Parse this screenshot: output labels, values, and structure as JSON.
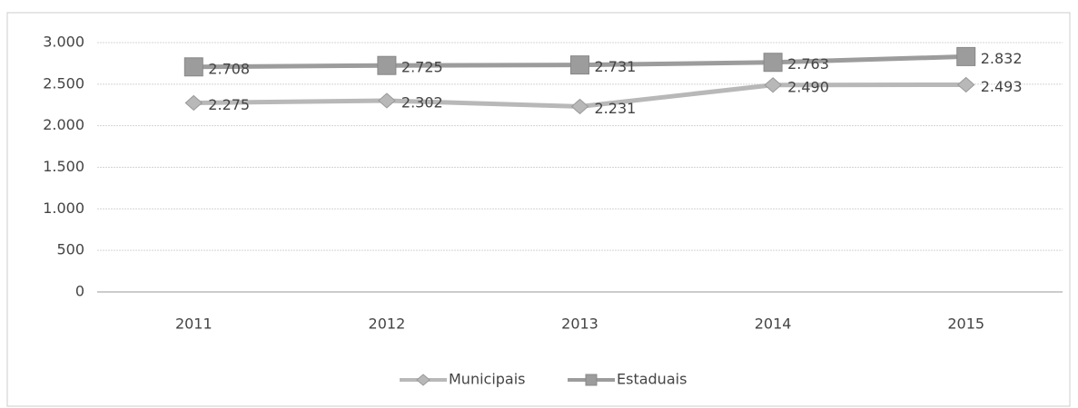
{
  "chart_data": {
    "type": "line",
    "categories": [
      "2011",
      "2012",
      "2013",
      "2014",
      "2015"
    ],
    "series": [
      {
        "name": "Municipais",
        "color": "#b8b8b8",
        "marker": "diamond",
        "values": [
          2275,
          2302,
          2231,
          2490,
          2493
        ],
        "value_labels": [
          "2.275",
          "2.302",
          "2.231",
          "2.490",
          "2.493"
        ]
      },
      {
        "name": "Estaduais",
        "color": "#9c9c9c",
        "marker": "square",
        "values": [
          2708,
          2725,
          2731,
          2763,
          2832
        ],
        "value_labels": [
          "2.708",
          "2.725",
          "2.731",
          "2.763",
          "2.832"
        ]
      }
    ],
    "ylim": [
      0,
      3000
    ],
    "yticks": [
      0,
      500,
      {
        "value": 1000,
        "label": "1.000"
      },
      {
        "value": 1500,
        "label": "1.500"
      },
      {
        "value": 2000,
        "label": "2.000"
      },
      {
        "value": 2500,
        "label": "2.500"
      },
      {
        "value": 3000,
        "label": "3.000"
      }
    ],
    "grid": true,
    "legend": "bottom"
  }
}
